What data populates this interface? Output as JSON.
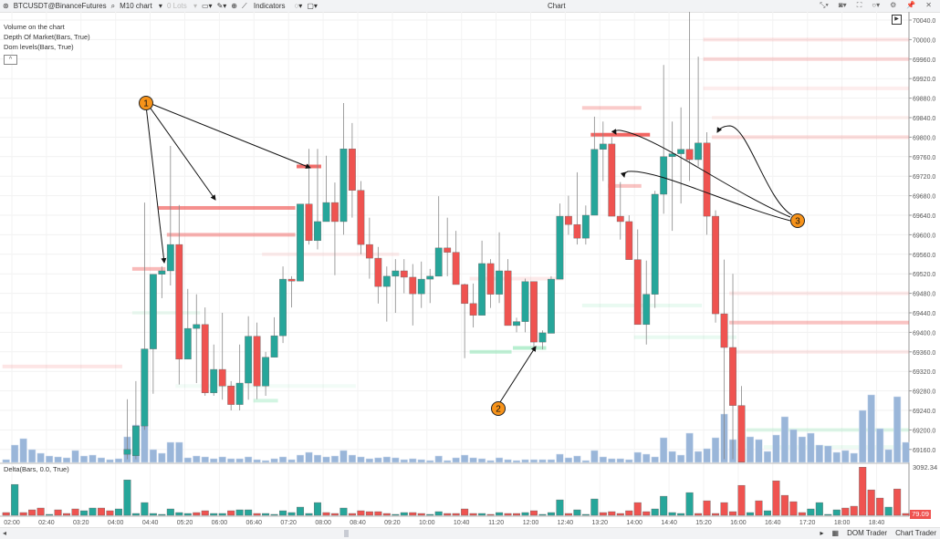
{
  "toolbar": {
    "symbol": "BTCUSDT@BinanceFutures",
    "chart_type": "M10 chart",
    "lots": "0 Lots",
    "indicators": "Indicators",
    "window_title": "Chart",
    "icons": [
      "app-logo-icon",
      "search-icon",
      "chevron-down-icon",
      "monitor-icon",
      "pencil-icon",
      "zoom-icon",
      "indicators-icon",
      "crosshair-icon",
      "window-icon",
      "minimize-icon",
      "camera-icon",
      "fullscreen-icon",
      "circle-icon",
      "settings-icon",
      "pin-icon",
      "close-icon"
    ]
  },
  "legend": {
    "items": [
      "Volume on the chart",
      "Depth Of Market(Bars, True)",
      "Dom levels(Bars, True)"
    ],
    "collapse": "^"
  },
  "delta_panel": {
    "label": "Delta(Bars, 0.0, True)",
    "max_label": "3092.34",
    "last_value": "79.09"
  },
  "bottom_bar": {
    "scroll_left": "◂",
    "scroll_right": "▸",
    "dom_trader": "DOM Trader",
    "chart_trader": "Chart Trader"
  },
  "colors": {
    "up": "#26a69a",
    "down": "#ef5350",
    "volume": "#9ab6d9",
    "dom_ask": "#ef5350",
    "dom_bid": "#4cd68a",
    "annotation": "#f7931a"
  },
  "annotations": [
    "1",
    "2",
    "3"
  ],
  "chart_data": {
    "type": "candlestick",
    "timeframe": "M10",
    "price_axis": {
      "min": 69160,
      "max": 70040,
      "step": 40,
      "labels": [
        "70040.0",
        "70000.0",
        "69960.0",
        "69920.0",
        "69880.0",
        "69840.0",
        "69800.0",
        "69760.0",
        "69720.0",
        "69680.0",
        "69640.0",
        "69600.0",
        "69560.0",
        "69520.0",
        "69480.0",
        "69440.0",
        "69400.0",
        "69360.0",
        "69320.0",
        "69280.0",
        "69240.0",
        "69200.0",
        "69160.0"
      ]
    },
    "time_labels": [
      "02:00",
      "02:40",
      "03:20",
      "04:00",
      "04:40",
      "05:20",
      "06:00",
      "06:40",
      "07:20",
      "08:00",
      "08:40",
      "09:20",
      "10:00",
      "10:40",
      "11:20",
      "12:00",
      "12:40",
      "13:20",
      "14:00",
      "14:40",
      "15:20",
      "16:00",
      "16:40",
      "17:20",
      "18:00",
      "18:40"
    ],
    "candle_first_bar": 14,
    "candles_ohlc": [
      [
        69150,
        69263,
        69140,
        69160
      ],
      [
        69147,
        69300,
        69140,
        69208
      ],
      [
        69208,
        69666,
        69200,
        69366
      ],
      [
        69366,
        69519,
        69274,
        69519
      ],
      [
        69519,
        69535,
        69470,
        69526
      ],
      [
        69526,
        69782,
        69496,
        69580
      ],
      [
        69580,
        69661,
        69293,
        69345
      ],
      [
        69345,
        69489,
        69345,
        69408
      ],
      [
        69408,
        69478,
        69296,
        69416
      ],
      [
        69416,
        69451,
        69270,
        69276
      ],
      [
        69276,
        69375,
        69270,
        69324
      ],
      [
        69324,
        69440,
        69262,
        69290
      ],
      [
        69290,
        69300,
        69240,
        69252
      ],
      [
        69252,
        69375,
        69240,
        69296
      ],
      [
        69296,
        69433,
        69262,
        69392
      ],
      [
        69392,
        69420,
        69263,
        69290
      ],
      [
        69290,
        69360,
        69270,
        69349
      ],
      [
        69349,
        69431,
        69349,
        69393
      ],
      [
        69393,
        69535,
        69378,
        69509
      ],
      [
        69509,
        69515,
        69451,
        69505
      ],
      [
        69505,
        69663,
        69505,
        69663
      ],
      [
        69663,
        69776,
        69580,
        69588
      ],
      [
        69588,
        69776,
        69570,
        69627
      ],
      [
        69627,
        69762,
        69627,
        69666
      ],
      [
        69666,
        69707,
        69517,
        69627
      ],
      [
        69627,
        69870,
        69600,
        69776
      ],
      [
        69776,
        69829,
        69635,
        69691
      ],
      [
        69691,
        69710,
        69560,
        69580
      ],
      [
        69580,
        69635,
        69510,
        69552
      ],
      [
        69552,
        69575,
        69459,
        69494
      ],
      [
        69494,
        69535,
        69422,
        69515
      ],
      [
        69515,
        69550,
        69440,
        69526
      ],
      [
        69526,
        69550,
        69480,
        69513
      ],
      [
        69513,
        69540,
        69414,
        69479
      ],
      [
        69479,
        69545,
        69450,
        69509
      ],
      [
        69509,
        69530,
        69460,
        69515
      ],
      [
        69515,
        69679,
        69515,
        69573
      ],
      [
        69573,
        69635,
        69515,
        69564
      ],
      [
        69564,
        69608,
        69498,
        69498
      ],
      [
        69498,
        69500,
        69347,
        69459
      ],
      [
        69459,
        69500,
        69410,
        69435
      ],
      [
        69435,
        69588,
        69435,
        69541
      ],
      [
        69541,
        69550,
        69450,
        69478
      ],
      [
        69478,
        69605,
        69460,
        69526
      ],
      [
        69526,
        69550,
        69414,
        69414
      ],
      [
        69414,
        69430,
        69400,
        69422
      ],
      [
        69422,
        69510,
        69400,
        69504
      ],
      [
        69504,
        69504,
        69369,
        69380
      ],
      [
        69380,
        69404,
        69365,
        69399
      ],
      [
        69398,
        69515,
        69398,
        69509
      ],
      [
        69509,
        69664,
        69509,
        69638
      ],
      [
        69638,
        69680,
        69600,
        69621
      ],
      [
        69621,
        69728,
        69580,
        69593
      ],
      [
        69593,
        69660,
        69580,
        69640
      ],
      [
        69640,
        69842,
        69640,
        69775
      ],
      [
        69775,
        69832,
        69710,
        69786
      ],
      [
        69786,
        69800,
        69638,
        69638
      ],
      [
        69638,
        69708,
        69590,
        69627
      ],
      [
        69627,
        69640,
        69549,
        69549
      ],
      [
        69549,
        69611,
        69416,
        69416
      ],
      [
        69416,
        69547,
        69375,
        69478
      ],
      [
        69478,
        69690,
        69450,
        69683
      ],
      [
        69683,
        69948,
        69643,
        69760
      ],
      [
        69760,
        69832,
        69608,
        69766
      ],
      [
        69766,
        69861,
        69664,
        69775
      ],
      [
        69775,
        70060,
        69710,
        69754
      ],
      [
        69754,
        69965,
        69740,
        69788
      ],
      [
        69788,
        69810,
        69600,
        69638
      ],
      [
        69638,
        69650,
        69420,
        69438
      ],
      [
        69438,
        69549,
        69140,
        69369
      ],
      [
        69369,
        69520,
        69140,
        69250
      ],
      [
        69250,
        69290,
        69134,
        69134
      ]
    ],
    "volume_relative": [
      3,
      19,
      26,
      14,
      10,
      7,
      6,
      5,
      13,
      7,
      8,
      5,
      3,
      4,
      28,
      41,
      41,
      14,
      10,
      22,
      22,
      5,
      7,
      6,
      4,
      6,
      4,
      4,
      6,
      3,
      2,
      4,
      6,
      3,
      8,
      11,
      8,
      6,
      7,
      13,
      8,
      6,
      4,
      5,
      6,
      5,
      3,
      4,
      3,
      2,
      7,
      2,
      5,
      8,
      5,
      4,
      2,
      5,
      3,
      2,
      3,
      3,
      3,
      3,
      9,
      5,
      7,
      2,
      13,
      6,
      4,
      4,
      3,
      11,
      9,
      6,
      27,
      12,
      8,
      32,
      12,
      15,
      27,
      53,
      25,
      30,
      28,
      25,
      12,
      30,
      50,
      36,
      28,
      32,
      19,
      18,
      11,
      13,
      10,
      57,
      74,
      37,
      14,
      72,
      22
    ],
    "delta": [
      -171,
      1938,
      -171,
      -342,
      -456,
      57,
      -342,
      -114,
      -399,
      285,
      456,
      -456,
      -285,
      399,
      2223,
      114,
      798,
      114,
      57,
      399,
      171,
      114,
      -171,
      -285,
      114,
      114,
      -285,
      342,
      342,
      -114,
      114,
      57,
      285,
      171,
      513,
      114,
      798,
      -171,
      -114,
      456,
      -114,
      -285,
      -228,
      -228,
      -114,
      57,
      171,
      -171,
      -114,
      57,
      228,
      -114,
      -114,
      -399,
      -114,
      114,
      -57,
      171,
      -114,
      -114,
      171,
      -285,
      57,
      171,
      969,
      -114,
      342,
      57,
      1026,
      -171,
      -228,
      -114,
      -285,
      -798,
      -228,
      399,
      1197,
      171,
      114,
      1425,
      -114,
      -912,
      -114,
      -798,
      -228,
      -1881,
      171,
      -912,
      285,
      -2166,
      -1254,
      -855,
      -171,
      399,
      798,
      57,
      342,
      -456,
      -570,
      -3021,
      -1596,
      -1083,
      513,
      -1653,
      -114
    ],
    "dom_levels": [
      {
        "side": "ask",
        "price": 69330,
        "from": 0,
        "to": 13,
        "strength": 0.15
      },
      {
        "side": "ask",
        "price": 69530,
        "from": 15,
        "to": 18,
        "strength": 0.4
      },
      {
        "side": "ask",
        "price": 69655,
        "from": 18,
        "to": 33,
        "strength": 0.65
      },
      {
        "side": "ask",
        "price": 69600,
        "from": 19,
        "to": 33,
        "strength": 0.45
      },
      {
        "side": "ask",
        "price": 69740,
        "from": 34,
        "to": 36,
        "strength": 0.85
      },
      {
        "side": "ask",
        "price": 69560,
        "from": 30,
        "to": 45,
        "strength": 0.1
      },
      {
        "side": "ask",
        "price": 69805,
        "from": 68,
        "to": 74,
        "strength": 0.9
      },
      {
        "side": "ask",
        "price": 69860,
        "from": 67,
        "to": 73,
        "strength": 0.3
      },
      {
        "side": "ask",
        "price": 69700,
        "from": 70,
        "to": 73,
        "strength": 0.35
      },
      {
        "side": "ask",
        "price": 69510,
        "from": 54,
        "to": 64,
        "strength": 0.12
      },
      {
        "side": "ask",
        "price": 69800,
        "from": 82,
        "to": 104,
        "strength": 0.2
      },
      {
        "side": "ask",
        "price": 69840,
        "from": 82,
        "to": 104,
        "strength": 0.08
      },
      {
        "side": "ask",
        "price": 70000,
        "from": 81,
        "to": 104,
        "strength": 0.15
      },
      {
        "side": "ask",
        "price": 69960,
        "from": 81,
        "to": 104,
        "strength": 0.22
      },
      {
        "side": "ask",
        "price": 69900,
        "from": 81,
        "to": 104,
        "strength": 0.1
      },
      {
        "side": "ask",
        "price": 69420,
        "from": 84,
        "to": 104,
        "strength": 0.35
      },
      {
        "side": "ask",
        "price": 69480,
        "from": 84,
        "to": 104,
        "strength": 0.12
      },
      {
        "side": "ask",
        "price": 69360,
        "from": 84,
        "to": 104,
        "strength": 0.12
      },
      {
        "side": "bid",
        "price": 69360,
        "from": 54,
        "to": 58,
        "strength": 0.35
      },
      {
        "side": "bid",
        "price": 69368,
        "from": 59,
        "to": 62,
        "strength": 0.4
      },
      {
        "side": "bid",
        "price": 69200,
        "from": 86,
        "to": 104,
        "strength": 0.18
      },
      {
        "side": "bid",
        "price": 69165,
        "from": 88,
        "to": 104,
        "strength": 0.1
      },
      {
        "side": "bid",
        "price": 69455,
        "from": 67,
        "to": 80,
        "strength": 0.12
      },
      {
        "side": "bid",
        "price": 69390,
        "from": 73,
        "to": 84,
        "strength": 0.12
      },
      {
        "side": "bid",
        "price": 69290,
        "from": 20,
        "to": 40,
        "strength": 0.07
      },
      {
        "side": "bid",
        "price": 69260,
        "from": 29,
        "to": 31,
        "strength": 0.25
      },
      {
        "side": "bid",
        "price": 69440,
        "from": 15,
        "to": 22,
        "strength": 0.1
      }
    ]
  }
}
